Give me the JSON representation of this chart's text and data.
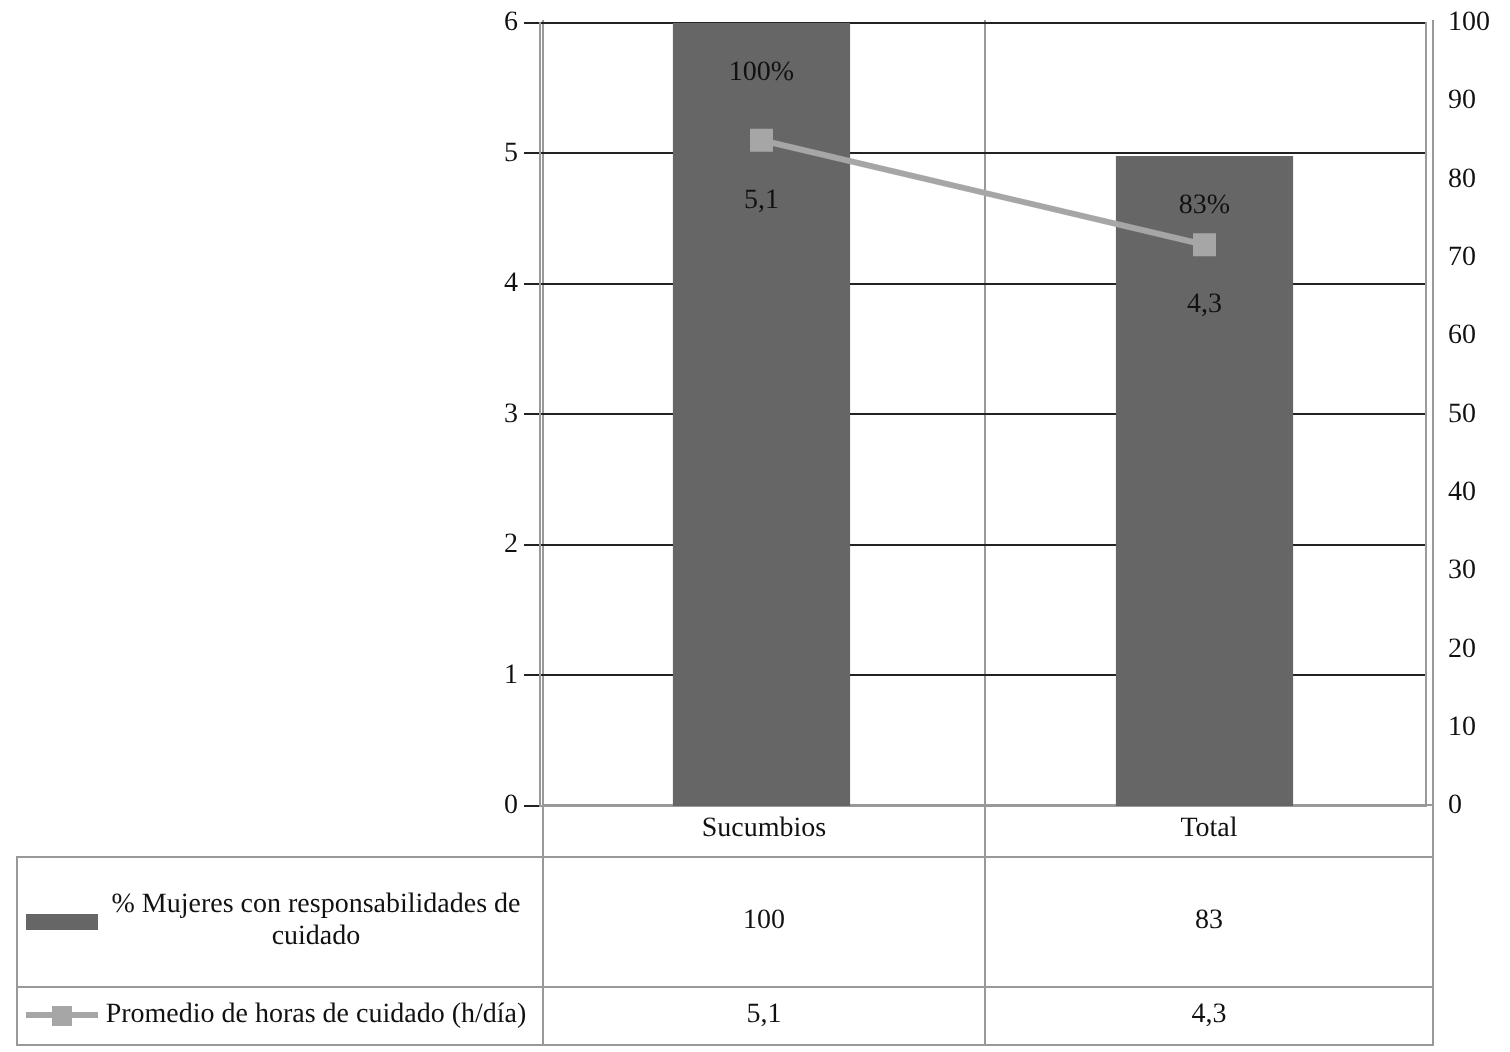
{
  "chart_data": {
    "type": "bar",
    "categories": [
      "Sucumbios",
      "Total"
    ],
    "series": [
      {
        "name": "% Mujeres con responsabilidades de cuidado",
        "color": "#666666",
        "axis": "y2",
        "values": [
          100,
          83
        ],
        "value_labels": [
          "100%",
          "83%"
        ]
      },
      {
        "name": "Promedio de horas de cuidado (h/día)",
        "type": "line",
        "color": "#a6a6a6",
        "axis": "y",
        "values": [
          5.1,
          4.3
        ],
        "value_labels": [
          "5,1",
          "4,3"
        ]
      }
    ],
    "ylim": [
      0,
      6
    ],
    "yticks": [
      0,
      1,
      2,
      3,
      4,
      5,
      6
    ],
    "y2lim": [
      0,
      100
    ],
    "y2ticks": [
      0,
      10,
      20,
      30,
      40,
      50,
      60,
      70,
      80,
      90,
      100
    ],
    "annotations": [
      "100",
      "83",
      "5,1",
      "4,3"
    ],
    "grid": "y",
    "legend": "bottom",
    "marker": "square",
    "line_style": "solid"
  }
}
